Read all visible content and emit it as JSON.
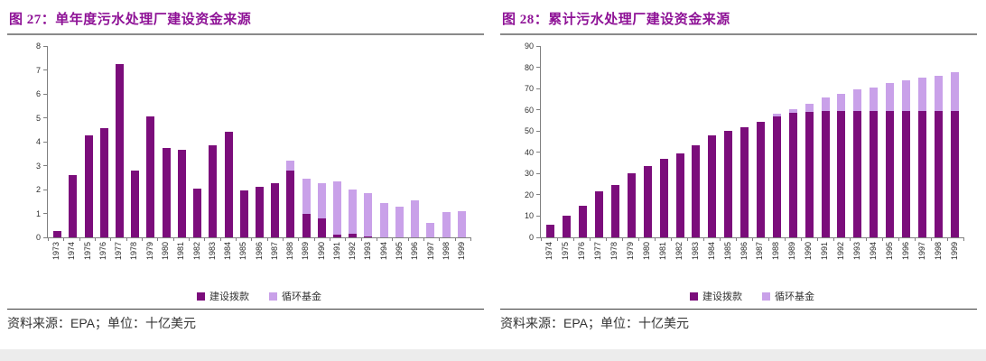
{
  "colors": {
    "title_purple": "#8e1296",
    "grant_dark": "#7b0d7b",
    "revolving_light": "#c9a1e9",
    "axis_gray": "#808080"
  },
  "legend": {
    "grant": "建设拨款",
    "revolving": "循环基金"
  },
  "source_note": {
    "prefix": "资料来源：",
    "source": "EPA",
    "middle": "；单位：",
    "unit": "十亿美元"
  },
  "chart_data": [
    {
      "type": "bar",
      "stacked": true,
      "fig_label": "图 27：",
      "title": "单年度污水处理厂建设资金来源",
      "categories": [
        "1973",
        "1974",
        "1975",
        "1976",
        "1977",
        "1978",
        "1979",
        "1980",
        "1981",
        "1982",
        "1983",
        "1984",
        "1985",
        "1986",
        "1987",
        "1988",
        "1989",
        "1990",
        "1991",
        "1992",
        "1993",
        "1994",
        "1995",
        "1996",
        "1997",
        "1998",
        "1999"
      ],
      "series": [
        {
          "name": "建设拨款",
          "color": "#7b0d7b",
          "values": [
            0.25,
            2.6,
            4.25,
            4.55,
            7.25,
            2.8,
            5.05,
            3.75,
            3.65,
            2.05,
            3.85,
            4.4,
            1.95,
            2.1,
            2.25,
            2.8,
            1.0,
            0.8,
            0.1,
            0.15,
            0.05,
            0,
            0,
            0,
            0,
            0,
            0
          ]
        },
        {
          "name": "循环基金",
          "color": "#c9a1e9",
          "values": [
            0,
            0,
            0,
            0,
            0,
            0,
            0,
            0,
            0,
            0,
            0,
            0,
            0,
            0,
            0,
            0.4,
            1.45,
            1.45,
            2.25,
            1.85,
            1.8,
            1.45,
            1.3,
            1.55,
            0.6,
            1.05,
            1.1
          ]
        }
      ],
      "ylim": [
        0,
        8
      ],
      "ytick_step": 1,
      "grid": false,
      "legend_position": "bottom",
      "ylabel": "",
      "xlabel": ""
    },
    {
      "type": "bar",
      "stacked": true,
      "fig_label": "图 28：",
      "title": "累计污水处理厂建设资金来源",
      "categories": [
        "1974",
        "1975",
        "1976",
        "1977",
        "1978",
        "1979",
        "1980",
        "1981",
        "1982",
        "1983",
        "1984",
        "1985",
        "1986",
        "1987",
        "1988",
        "1989",
        "1990",
        "1991",
        "1992",
        "1993",
        "1994",
        "1995",
        "1996",
        "1997",
        "1998",
        "1999"
      ],
      "series": [
        {
          "name": "建设拨款",
          "color": "#7b0d7b",
          "values": [
            6,
            10,
            15,
            21.5,
            24.5,
            30,
            33.5,
            37,
            39.5,
            43.5,
            48,
            50,
            52,
            54.5,
            57,
            58.5,
            59,
            59.5,
            59.5,
            59.5,
            59.5,
            59.5,
            59.5,
            59.5,
            59.5,
            59.5
          ]
        },
        {
          "name": "循环基金",
          "color": "#c9a1e9",
          "values": [
            0,
            0,
            0,
            0,
            0,
            0,
            0,
            0,
            0,
            0,
            0,
            0,
            0,
            0,
            1,
            2,
            4,
            6.5,
            8,
            10,
            11,
            13,
            14.5,
            15.5,
            16.5,
            18
          ]
        }
      ],
      "ylim": [
        0,
        90
      ],
      "ytick_step": 10,
      "grid": false,
      "legend_position": "bottom",
      "ylabel": "",
      "xlabel": ""
    }
  ]
}
